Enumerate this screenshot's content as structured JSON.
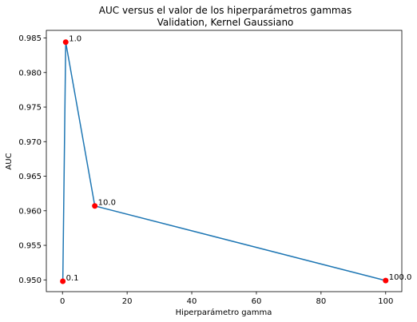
{
  "chart_data": {
    "type": "line",
    "title": "AUC versus el valor de los hiperparámetros gammas",
    "subtitle": "Validation, Kernel Gaussiano",
    "xlabel": "Hiperparámetro gamma",
    "ylabel": "AUC",
    "xlim": [
      -5,
      105
    ],
    "ylim": [
      0.9483,
      0.9861
    ],
    "xticks": [
      0,
      20,
      40,
      60,
      80,
      100
    ],
    "xtick_labels": [
      "0",
      "20",
      "40",
      "60",
      "80",
      "100"
    ],
    "yticks": [
      0.95,
      0.955,
      0.96,
      0.965,
      0.97,
      0.975,
      0.98,
      0.985
    ],
    "ytick_labels": [
      "0.950",
      "0.955",
      "0.960",
      "0.965",
      "0.970",
      "0.975",
      "0.980",
      "0.985"
    ],
    "grid": false,
    "series": [
      {
        "x": [
          0.1,
          1.0,
          10.0,
          100.0
        ],
        "y": [
          0.9498,
          0.9844,
          0.9607,
          0.9499
        ],
        "line_color": "#1f77b4",
        "marker_color": "#ff0000"
      }
    ],
    "annotations": [
      {
        "text": "0.1",
        "x": 0.1,
        "y": 0.9498
      },
      {
        "text": "1.0",
        "x": 1.0,
        "y": 0.9844
      },
      {
        "text": "10.0",
        "x": 10.0,
        "y": 0.9607
      },
      {
        "text": "100.0",
        "x": 100.0,
        "y": 0.9499
      }
    ]
  }
}
